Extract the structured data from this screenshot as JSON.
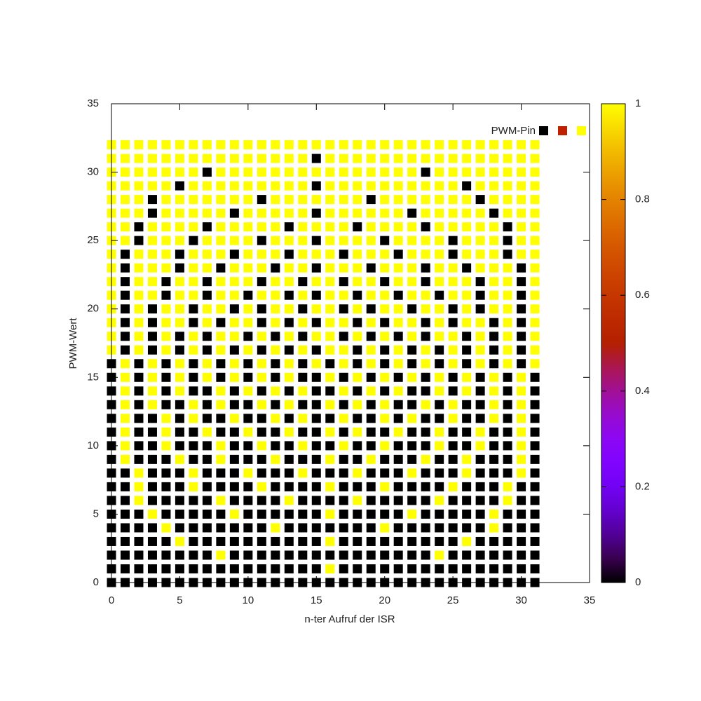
{
  "chart_data": {
    "type": "heatmap",
    "xlabel": "n-ter Aufruf der ISR",
    "ylabel": "PWM-Wert",
    "legend": {
      "label": "PWM-Pin",
      "colors": [
        "#000000",
        "#c02000",
        "#ffff00"
      ]
    },
    "xlim": [
      0,
      35
    ],
    "xticks": [
      0,
      5,
      10,
      15,
      20,
      25,
      30,
      35
    ],
    "ylim": [
      0,
      35
    ],
    "yticks": [
      0,
      5,
      10,
      15,
      20,
      25,
      30,
      35
    ],
    "zlim": [
      0,
      1
    ],
    "zticks": [
      0,
      0.2,
      0.4,
      0.6,
      0.8,
      1
    ],
    "x": [
      0,
      1,
      2,
      3,
      4,
      5,
      6,
      7,
      8,
      9,
      10,
      11,
      12,
      13,
      14,
      15,
      16,
      17,
      18,
      19,
      20,
      21,
      22,
      23,
      24,
      25,
      26,
      27,
      28,
      29,
      30,
      31
    ],
    "y": [
      0,
      1,
      2,
      3,
      4,
      5,
      6,
      7,
      8,
      9,
      10,
      11,
      12,
      13,
      14,
      15,
      16,
      17,
      18,
      19,
      20,
      21,
      22,
      23,
      24,
      25,
      26,
      27,
      28,
      29,
      30,
      31,
      32
    ],
    "z": [
      [
        0,
        0,
        0,
        0,
        0,
        0,
        0,
        0,
        0,
        0,
        0,
        0,
        0,
        0,
        0,
        0,
        0,
        0,
        0,
        0,
        0,
        0,
        0,
        0,
        0,
        0,
        0,
        0,
        0,
        0,
        0,
        0
      ],
      [
        0,
        0,
        0,
        0,
        0,
        0,
        0,
        0,
        0,
        0,
        0,
        0,
        0,
        0,
        0,
        0,
        1,
        0,
        0,
        0,
        0,
        0,
        0,
        0,
        0,
        0,
        0,
        0,
        0,
        0,
        0,
        0
      ],
      [
        0,
        0,
        0,
        0,
        0,
        0,
        0,
        0,
        1,
        0,
        0,
        0,
        0,
        0,
        0,
        0,
        0,
        0,
        0,
        0,
        0,
        0,
        0,
        0,
        1,
        0,
        0,
        0,
        0,
        0,
        0,
        0
      ],
      [
        0,
        0,
        0,
        0,
        0,
        1,
        0,
        0,
        0,
        0,
        0,
        0,
        0,
        0,
        0,
        0,
        1,
        0,
        0,
        0,
        0,
        0,
        0,
        0,
        0,
        0,
        1,
        0,
        0,
        0,
        0,
        0
      ],
      [
        0,
        0,
        0,
        0,
        1,
        0,
        0,
        0,
        0,
        0,
        0,
        0,
        1,
        0,
        0,
        0,
        0,
        0,
        0,
        0,
        1,
        0,
        0,
        0,
        0,
        0,
        0,
        0,
        1,
        0,
        0,
        0
      ],
      [
        0,
        0,
        0,
        1,
        0,
        0,
        0,
        0,
        0,
        1,
        0,
        0,
        0,
        0,
        0,
        0,
        1,
        0,
        0,
        0,
        0,
        0,
        1,
        0,
        0,
        0,
        0,
        0,
        1,
        0,
        0,
        0
      ],
      [
        0,
        0,
        1,
        0,
        0,
        0,
        0,
        0,
        1,
        0,
        0,
        0,
        0,
        1,
        0,
        0,
        0,
        0,
        1,
        0,
        0,
        0,
        0,
        0,
        1,
        0,
        0,
        0,
        0,
        1,
        0,
        0
      ],
      [
        0,
        0,
        1,
        0,
        0,
        0,
        1,
        0,
        0,
        0,
        0,
        1,
        0,
        0,
        0,
        0,
        1,
        0,
        0,
        0,
        1,
        0,
        0,
        0,
        0,
        1,
        0,
        0,
        0,
        1,
        0,
        0
      ],
      [
        0,
        0,
        1,
        0,
        0,
        0,
        1,
        0,
        0,
        0,
        1,
        0,
        0,
        0,
        1,
        0,
        0,
        0,
        1,
        0,
        0,
        0,
        1,
        0,
        0,
        0,
        1,
        0,
        0,
        0,
        1,
        0
      ],
      [
        0,
        1,
        0,
        0,
        0,
        1,
        0,
        0,
        1,
        0,
        0,
        0,
        1,
        0,
        0,
        0,
        1,
        0,
        0,
        1,
        0,
        0,
        0,
        1,
        0,
        0,
        1,
        0,
        0,
        0,
        1,
        0
      ],
      [
        0,
        1,
        0,
        0,
        1,
        0,
        0,
        0,
        1,
        0,
        0,
        1,
        0,
        0,
        1,
        0,
        0,
        1,
        0,
        0,
        1,
        0,
        0,
        0,
        1,
        0,
        0,
        1,
        0,
        0,
        1,
        0
      ],
      [
        0,
        1,
        0,
        0,
        1,
        0,
        0,
        1,
        0,
        0,
        1,
        0,
        0,
        1,
        0,
        0,
        1,
        0,
        1,
        0,
        0,
        1,
        0,
        0,
        1,
        0,
        0,
        1,
        0,
        0,
        1,
        0
      ],
      [
        0,
        1,
        0,
        0,
        1,
        0,
        1,
        0,
        0,
        1,
        0,
        0,
        1,
        0,
        1,
        0,
        0,
        1,
        0,
        0,
        1,
        0,
        1,
        0,
        0,
        1,
        0,
        0,
        1,
        0,
        1,
        0
      ],
      [
        0,
        1,
        0,
        1,
        0,
        0,
        1,
        0,
        1,
        0,
        0,
        1,
        0,
        1,
        0,
        0,
        1,
        0,
        1,
        0,
        1,
        0,
        0,
        1,
        0,
        1,
        0,
        0,
        1,
        0,
        1,
        0
      ],
      [
        0,
        1,
        0,
        1,
        0,
        1,
        0,
        0,
        1,
        0,
        1,
        0,
        1,
        0,
        1,
        0,
        0,
        1,
        0,
        1,
        0,
        1,
        0,
        0,
        1,
        0,
        1,
        0,
        1,
        0,
        1,
        0
      ],
      [
        0,
        1,
        0,
        1,
        0,
        1,
        0,
        1,
        0,
        1,
        0,
        1,
        0,
        1,
        0,
        0,
        1,
        0,
        1,
        0,
        1,
        0,
        1,
        0,
        1,
        0,
        1,
        0,
        1,
        0,
        1,
        0
      ],
      [
        0,
        1,
        0,
        1,
        0,
        1,
        0,
        1,
        0,
        1,
        0,
        1,
        0,
        1,
        0,
        1,
        0,
        1,
        0,
        1,
        0,
        1,
        0,
        1,
        0,
        1,
        0,
        1,
        0,
        1,
        0,
        1
      ],
      [
        1,
        0,
        1,
        0,
        1,
        0,
        1,
        0,
        1,
        0,
        1,
        0,
        1,
        0,
        1,
        0,
        1,
        1,
        0,
        1,
        0,
        1,
        0,
        1,
        0,
        1,
        0,
        1,
        0,
        1,
        0,
        1
      ],
      [
        1,
        0,
        1,
        0,
        1,
        0,
        1,
        0,
        1,
        1,
        0,
        1,
        0,
        1,
        0,
        1,
        1,
        0,
        1,
        0,
        1,
        0,
        1,
        0,
        1,
        1,
        0,
        1,
        0,
        1,
        0,
        1
      ],
      [
        1,
        0,
        1,
        0,
        1,
        1,
        0,
        1,
        0,
        1,
        1,
        0,
        1,
        0,
        1,
        0,
        1,
        1,
        0,
        1,
        0,
        1,
        1,
        0,
        1,
        0,
        1,
        1,
        0,
        1,
        0,
        1
      ],
      [
        1,
        0,
        1,
        0,
        1,
        1,
        0,
        1,
        1,
        0,
        1,
        0,
        1,
        1,
        0,
        1,
        1,
        0,
        1,
        0,
        1,
        1,
        0,
        1,
        1,
        0,
        1,
        0,
        1,
        1,
        0,
        1
      ],
      [
        1,
        0,
        1,
        1,
        0,
        1,
        1,
        0,
        1,
        1,
        0,
        1,
        1,
        0,
        1,
        0,
        1,
        1,
        0,
        1,
        1,
        0,
        1,
        1,
        0,
        1,
        1,
        0,
        1,
        1,
        0,
        1
      ],
      [
        1,
        0,
        1,
        1,
        0,
        1,
        1,
        0,
        1,
        1,
        1,
        0,
        1,
        1,
        0,
        1,
        1,
        0,
        1,
        1,
        0,
        1,
        1,
        0,
        1,
        1,
        1,
        0,
        1,
        1,
        0,
        1
      ],
      [
        1,
        0,
        1,
        1,
        1,
        0,
        1,
        1,
        0,
        1,
        1,
        1,
        0,
        1,
        1,
        0,
        1,
        1,
        1,
        0,
        1,
        1,
        1,
        0,
        1,
        1,
        0,
        1,
        1,
        1,
        0,
        1
      ],
      [
        1,
        0,
        1,
        1,
        1,
        0,
        1,
        1,
        1,
        0,
        1,
        1,
        1,
        0,
        1,
        1,
        1,
        0,
        1,
        1,
        1,
        0,
        1,
        1,
        1,
        0,
        1,
        1,
        1,
        0,
        1,
        1
      ],
      [
        1,
        1,
        0,
        1,
        1,
        1,
        0,
        1,
        1,
        1,
        1,
        0,
        1,
        1,
        1,
        0,
        1,
        1,
        1,
        1,
        0,
        1,
        1,
        1,
        1,
        0,
        1,
        1,
        1,
        0,
        1,
        1
      ],
      [
        1,
        1,
        0,
        1,
        1,
        1,
        1,
        0,
        1,
        1,
        1,
        1,
        1,
        0,
        1,
        1,
        1,
        1,
        0,
        1,
        1,
        1,
        1,
        0,
        1,
        1,
        1,
        1,
        1,
        0,
        1,
        1
      ],
      [
        1,
        1,
        1,
        0,
        1,
        1,
        1,
        1,
        1,
        0,
        1,
        1,
        1,
        1,
        1,
        0,
        1,
        1,
        1,
        1,
        1,
        1,
        0,
        1,
        1,
        1,
        1,
        1,
        0,
        1,
        1,
        1
      ],
      [
        1,
        1,
        1,
        0,
        1,
        1,
        1,
        1,
        1,
        1,
        1,
        0,
        1,
        1,
        1,
        1,
        1,
        1,
        1,
        0,
        1,
        1,
        1,
        1,
        1,
        1,
        1,
        0,
        1,
        1,
        1,
        1
      ],
      [
        1,
        1,
        1,
        1,
        1,
        0,
        1,
        1,
        1,
        1,
        1,
        1,
        1,
        1,
        1,
        0,
        1,
        1,
        1,
        1,
        1,
        1,
        1,
        1,
        1,
        1,
        0,
        1,
        1,
        1,
        1,
        1
      ],
      [
        1,
        1,
        1,
        1,
        1,
        1,
        1,
        0,
        1,
        1,
        1,
        1,
        1,
        1,
        1,
        1,
        1,
        1,
        1,
        1,
        1,
        1,
        1,
        0,
        1,
        1,
        1,
        1,
        1,
        1,
        1,
        1
      ],
      [
        1,
        1,
        1,
        1,
        1,
        1,
        1,
        1,
        1,
        1,
        1,
        1,
        1,
        1,
        1,
        0,
        1,
        1,
        1,
        1,
        1,
        1,
        1,
        1,
        1,
        1,
        1,
        1,
        1,
        1,
        1,
        1
      ],
      [
        1,
        1,
        1,
        1,
        1,
        1,
        1,
        1,
        1,
        1,
        1,
        1,
        1,
        1,
        1,
        1,
        1,
        1,
        1,
        1,
        1,
        1,
        1,
        1,
        1,
        1,
        1,
        1,
        1,
        1,
        1,
        1
      ]
    ]
  }
}
